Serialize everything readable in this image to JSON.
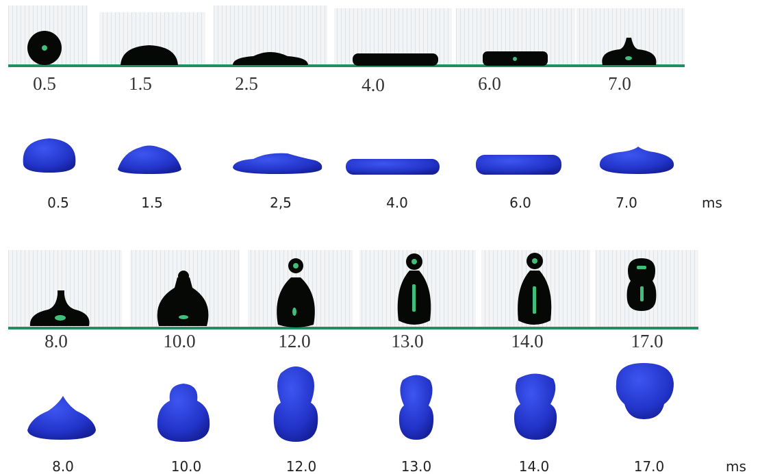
{
  "experiment_top": {
    "labels": [
      "0.5",
      "1.5",
      "2.5",
      "4.0",
      "6.0",
      "7.0"
    ]
  },
  "simulation_top": {
    "labels": [
      "0.5",
      "1.5",
      "2,5",
      "4.0",
      "6.0",
      "7.0"
    ],
    "unit": "ms"
  },
  "experiment_bottom": {
    "labels": [
      "8.0",
      "10.0",
      "12.0",
      "13.0",
      "14.0",
      "17.0"
    ]
  },
  "simulation_bottom": {
    "labels": [
      "8.0",
      "10.0",
      "12.0",
      "13.0",
      "14.0",
      "17.0"
    ],
    "unit": "ms"
  }
}
